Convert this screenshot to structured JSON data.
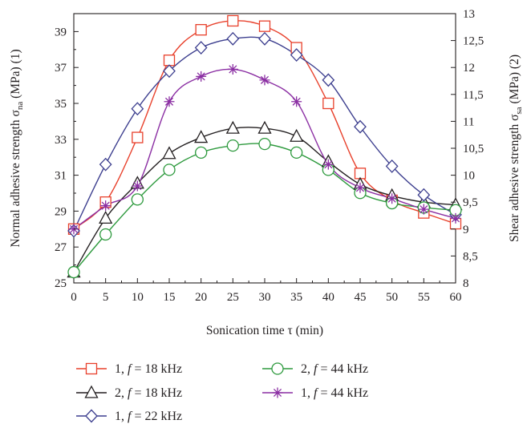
{
  "chart_data": {
    "type": "line",
    "xlabel": "Sonication time τ (min)",
    "ylabel_left": {
      "main": "Normal adhesive strength σ",
      "sub": "na",
      "tail": " (MPa) (1)"
    },
    "ylabel_right": {
      "main": "Shear adhesive strength σ",
      "sub": "sa",
      "tail": " (MPa) (2)"
    },
    "x": [
      0,
      5,
      10,
      15,
      20,
      25,
      30,
      35,
      40,
      45,
      50,
      55,
      60
    ],
    "xlim": [
      0,
      60
    ],
    "ylim_left": [
      25,
      40
    ],
    "ylim_right": [
      8,
      13
    ],
    "x_ticks": [
      "0",
      "5",
      "10",
      "15",
      "20",
      "25",
      "30",
      "35",
      "40",
      "45",
      "50",
      "55",
      "60"
    ],
    "left_ticks": [
      "25",
      "27",
      "29",
      "31",
      "33",
      "35",
      "37",
      "39"
    ],
    "right_ticks": [
      "8",
      "8,5",
      "9",
      "9,5",
      "10",
      "10,5",
      "11",
      "11,5",
      "12",
      "12,5",
      "13"
    ],
    "grid": false,
    "legend_position": "bottom",
    "series": [
      {
        "name": "1, f = 18 kHz",
        "axis": "left",
        "marker": "square",
        "color": "#e8412c",
        "values": [
          28.0,
          29.5,
          33.1,
          37.4,
          39.1,
          39.6,
          39.3,
          38.1,
          35.0,
          31.1,
          29.6,
          28.9,
          28.3
        ]
      },
      {
        "name": "2, f = 18 kHz",
        "axis": "right",
        "marker": "triangle",
        "color": "#231f20",
        "values": [
          8.2,
          9.2,
          9.85,
          10.4,
          10.7,
          10.87,
          10.87,
          10.72,
          10.25,
          9.83,
          9.62,
          9.5,
          9.45
        ]
      },
      {
        "name": "1, f = 22 kHz",
        "axis": "left",
        "marker": "diamond",
        "color": "#3d3f8f",
        "values": [
          27.9,
          31.6,
          34.7,
          36.8,
          38.1,
          38.6,
          38.6,
          37.7,
          36.3,
          33.7,
          31.5,
          29.9,
          28.8
        ]
      },
      {
        "name": "2, f = 44 kHz",
        "axis": "right",
        "marker": "circle",
        "color": "#2e9a3e",
        "values": [
          8.2,
          8.9,
          9.55,
          10.1,
          10.42,
          10.55,
          10.58,
          10.42,
          10.1,
          9.67,
          9.48,
          9.4,
          9.35
        ]
      },
      {
        "name": "1, f = 44 kHz",
        "axis": "left",
        "marker": "star",
        "color": "#8b2fa3",
        "values": [
          28.0,
          29.3,
          30.4,
          35.1,
          36.5,
          36.9,
          36.3,
          35.1,
          31.6,
          30.3,
          29.7,
          29.1,
          28.6
        ]
      }
    ]
  }
}
